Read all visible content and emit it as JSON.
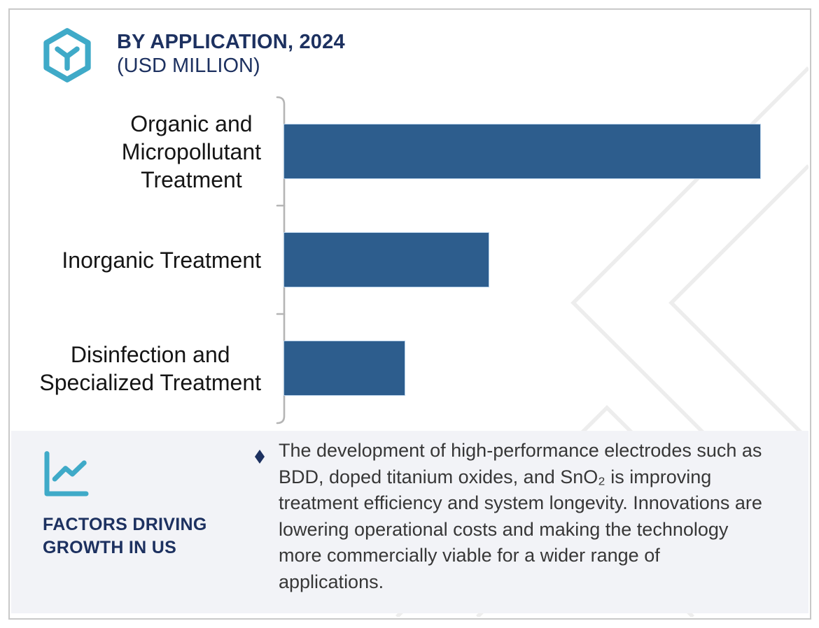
{
  "header": {
    "title": "BY APPLICATION, 2024",
    "subtitle": "(USD MILLION)",
    "logo_icon": "hexagon-y-icon"
  },
  "chart_data": {
    "type": "bar",
    "orientation": "horizontal",
    "title": "BY APPLICATION, 2024",
    "units": "USD MILLION",
    "categories": [
      "Organic and Micropollutant Treatment",
      "Inorganic Treatment",
      "Disinfection and Specialized Treatment"
    ],
    "category_lines": [
      [
        "Organic and",
        "Micropollutant",
        "Treatment"
      ],
      [
        "Inorganic Treatment"
      ],
      [
        "Disinfection and",
        "Specialized Treatment"
      ]
    ],
    "values_pct_of_max": [
      100,
      43.1,
      25.5
    ],
    "value_labels_shown": false,
    "value_axis_shown": false,
    "legend_shown": false,
    "grid": "off",
    "bar_color": "#2d5d8d",
    "bar_border_color": "#b9d2ea",
    "axis_color": "#b5b5b5"
  },
  "factors_panel": {
    "icon": "line-chart-icon",
    "heading": "FACTORS DRIVING GROWTH IN US",
    "heading_lines": [
      "FACTORS DRIVING",
      "GROWTH IN US"
    ],
    "bullet_icon": "diamond",
    "paragraph": "The development of high-performance electrodes such as BDD, doped titanium oxides, and SnO₂ is improving treatment efficiency and system longevity. Innovations are lowering operational costs and making the technology more commercially viable for a wider range of applications.",
    "paragraph_lines": [
      "The development of high-performance electrodes such as",
      "BDD, doped titanium oxides, and SnO₂ is improving",
      "treatment efficiency and system longevity. Innovations are",
      "lowering operational costs and making the technology",
      "more commercially viable for a wider range of",
      "applications."
    ]
  },
  "colors": {
    "navy": "#1d3160",
    "teal": "#3faac8",
    "bar_blue": "#2d5d8d",
    "panel_background": "#f2f3f7",
    "watermark": "#ededed",
    "card_border": "#c9c9c9",
    "label_text": "#151515",
    "body_text": "#373737"
  }
}
